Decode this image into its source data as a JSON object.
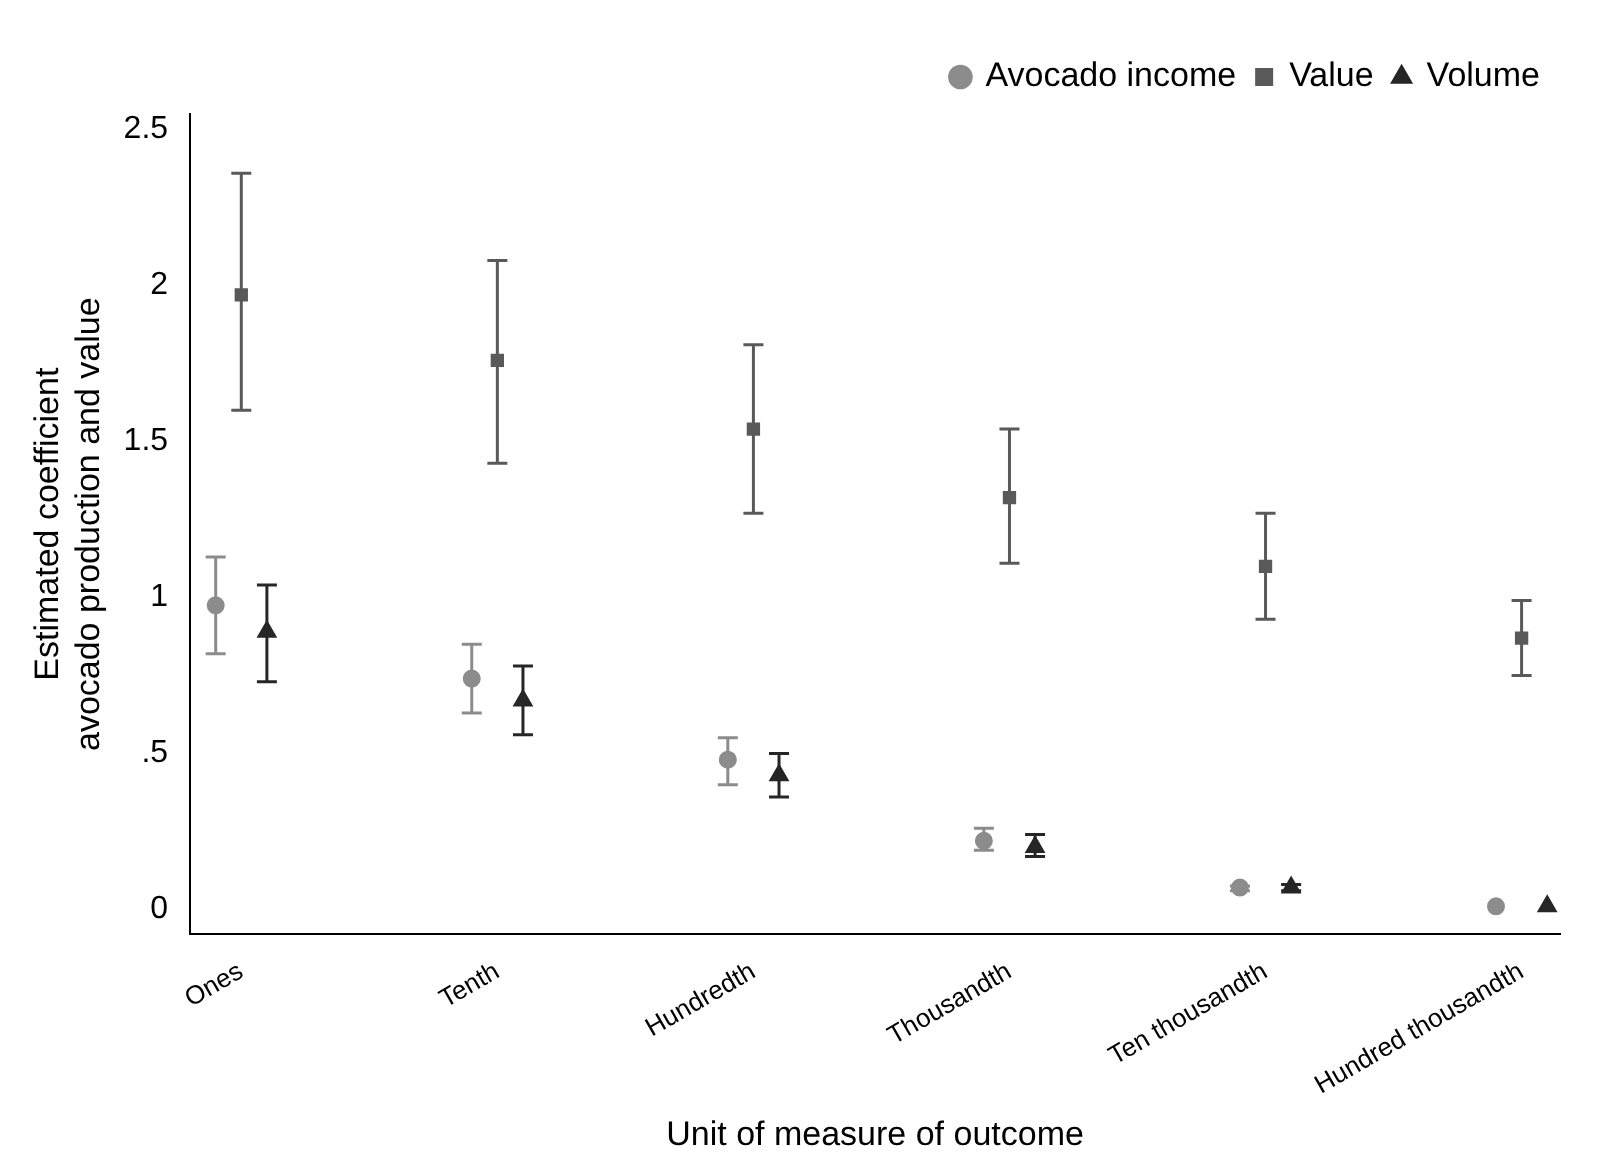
{
  "chart_data": {
    "type": "scatter",
    "xlabel": "Unit of measure of outcome",
    "ylabel": "Estimated coefficient\navocado production and value",
    "categories": [
      "Ones",
      "Tenth",
      "Hundredth",
      "Thousandth",
      "Ten thousandth",
      "Hundred thousandth"
    ],
    "series": [
      {
        "name": "Avocado income",
        "color": "#8c8c8c",
        "marker": "circle",
        "values": [
          0.975,
          0.74,
          0.48,
          0.22,
          0.07,
          0.01
        ],
        "errors": [
          [
            0.82,
            1.13
          ],
          [
            0.63,
            0.85
          ],
          [
            0.4,
            0.55
          ],
          [
            0.19,
            0.26
          ],
          [
            0.06,
            0.075
          ],
          null
        ]
      },
      {
        "name": "Value",
        "color": "#595959",
        "marker": "square",
        "values": [
          1.97,
          1.76,
          1.54,
          1.32,
          1.1,
          0.87
        ],
        "errors": [
          [
            1.6,
            2.36
          ],
          [
            1.43,
            2.08
          ],
          [
            1.27,
            1.81
          ],
          [
            1.11,
            1.54
          ],
          [
            0.93,
            1.27
          ],
          [
            0.75,
            0.99
          ]
        ]
      },
      {
        "name": "Volume",
        "color": "#262626",
        "marker": "triangle",
        "values": [
          0.89,
          0.67,
          0.43,
          0.2,
          0.07,
          0.01
        ],
        "errors": [
          [
            0.73,
            1.04
          ],
          [
            0.56,
            0.78
          ],
          [
            0.36,
            0.5
          ],
          [
            0.17,
            0.24
          ],
          [
            0.06,
            0.08
          ],
          null
        ]
      }
    ],
    "ylim": [
      -0.08,
      2.55
    ],
    "yticks": [
      0,
      {
        "value": 0.5,
        "label": ".5"
      },
      1,
      1.5,
      2,
      2.5
    ],
    "grid": false,
    "legend": "top right"
  }
}
